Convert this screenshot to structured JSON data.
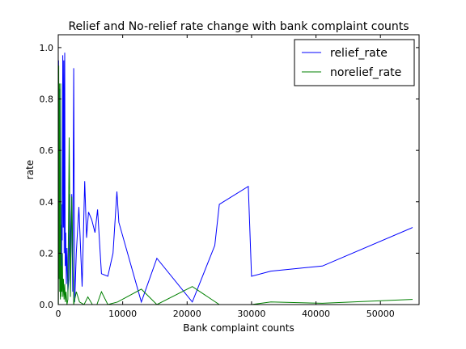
{
  "chart_data": {
    "type": "line",
    "title": "Relief and No-relief rate change with bank complaint counts",
    "xlabel": "Bank complaint counts",
    "ylabel": "rate",
    "xlim": [
      0,
      56000
    ],
    "ylim": [
      0,
      1.05
    ],
    "xticks": [
      0,
      10000,
      20000,
      30000,
      40000,
      50000
    ],
    "xtick_labels": [
      "0",
      "10000",
      "20000",
      "30000",
      "40000",
      "50000"
    ],
    "yticks": [
      0.0,
      0.2,
      0.4,
      0.6,
      0.8,
      1.0
    ],
    "ytick_labels": [
      "0.0",
      "0.2",
      "0.4",
      "0.6",
      "0.8",
      "1.0"
    ],
    "grid": false,
    "legend": "top-right",
    "series": [
      {
        "name": "relief_rate",
        "color": "#0000ff",
        "x": [
          50,
          120,
          200,
          280,
          350,
          420,
          500,
          560,
          620,
          700,
          780,
          850,
          920,
          1000,
          1080,
          1150,
          1250,
          1350,
          1500,
          1650,
          1800,
          1950,
          2100,
          2250,
          2400,
          2550,
          2800,
          3200,
          3700,
          4100,
          4400,
          4700,
          5200,
          5700,
          6100,
          6700,
          7700,
          8500,
          9100,
          9400,
          12900,
          15300,
          20800,
          24300,
          25000,
          29500,
          30000,
          33000,
          41000,
          55000
        ],
        "y": [
          0.95,
          0.1,
          0.84,
          0.28,
          0.2,
          0.31,
          0.05,
          0.39,
          0.25,
          0.97,
          0.3,
          0.95,
          0.2,
          0.98,
          0.15,
          0.28,
          0.08,
          0.22,
          0.05,
          0.1,
          0.43,
          0.18,
          0.43,
          0.05,
          0.92,
          0.01,
          0.2,
          0.38,
          0.07,
          0.48,
          0.26,
          0.36,
          0.33,
          0.28,
          0.37,
          0.12,
          0.11,
          0.2,
          0.44,
          0.32,
          0.01,
          0.18,
          0.01,
          0.23,
          0.39,
          0.46,
          0.11,
          0.13,
          0.15,
          0.3
        ]
      },
      {
        "name": "norelief_rate",
        "color": "#008000",
        "x": [
          30,
          80,
          130,
          180,
          230,
          280,
          330,
          380,
          430,
          480,
          560,
          640,
          720,
          800,
          900,
          1000,
          1100,
          1200,
          1350,
          1500,
          1700,
          1900,
          2100,
          2400,
          2800,
          3300,
          4000,
          4600,
          5300,
          6000,
          6700,
          7700,
          9200,
          12900,
          15300,
          20800,
          25000,
          30000,
          33000,
          41000,
          55000
        ],
        "y": [
          0.0,
          0.93,
          0.1,
          0.86,
          0.05,
          0.2,
          0.02,
          0.86,
          0.03,
          0.15,
          0.05,
          0.2,
          0.03,
          0.1,
          0.02,
          0.08,
          0.01,
          0.05,
          0.0,
          0.02,
          0.65,
          0.03,
          0.42,
          0.0,
          0.05,
          0.01,
          0.0,
          0.03,
          0.0,
          0.0,
          0.05,
          0.0,
          0.01,
          0.06,
          0.0,
          0.07,
          0.0,
          0.0,
          0.01,
          0.005,
          0.02
        ]
      }
    ]
  }
}
